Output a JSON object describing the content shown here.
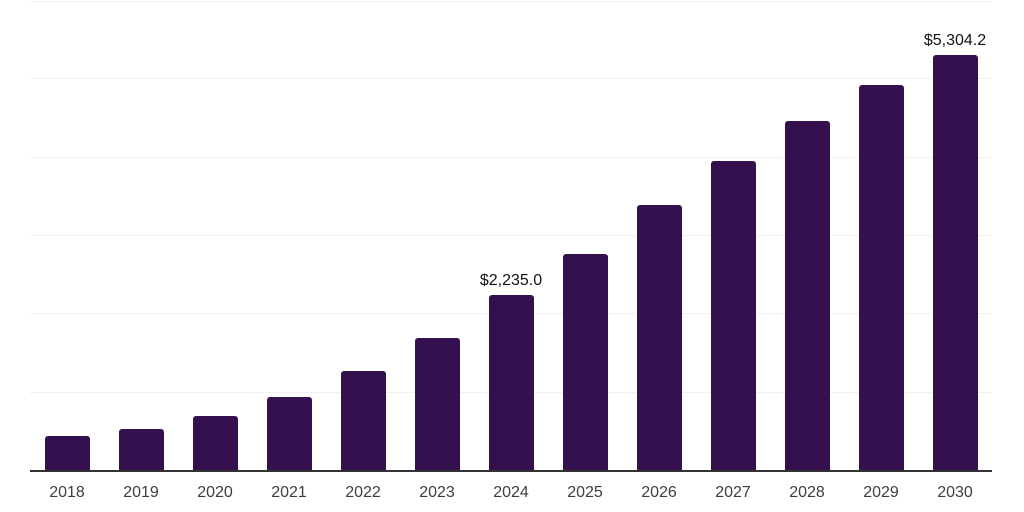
{
  "chart_data": {
    "type": "bar",
    "title": "",
    "xlabel": "",
    "ylabel": "",
    "categories": [
      "2018",
      "2019",
      "2020",
      "2021",
      "2022",
      "2023",
      "2024",
      "2025",
      "2026",
      "2027",
      "2028",
      "2029",
      "2030"
    ],
    "values": [
      435,
      520,
      690,
      930,
      1265,
      1685,
      2235.0,
      2755,
      3380,
      3945,
      4460,
      4915,
      5304.2
    ],
    "point_labels": [
      null,
      null,
      null,
      null,
      null,
      null,
      "$2,235.0",
      null,
      null,
      null,
      null,
      null,
      "$5,304.2"
    ],
    "ylim": [
      0,
      6000
    ],
    "gridline_step": 1000,
    "grid": "horizontal-only",
    "legend_position": "none",
    "y_axis_tick_labels_visible": false,
    "colors": {
      "bar": "#35104E",
      "axis_line": "#333333",
      "gridline": "#f0f0f0",
      "tick_label": "#3d3d3d",
      "data_label": "#121212",
      "background": "#ffffff"
    }
  }
}
